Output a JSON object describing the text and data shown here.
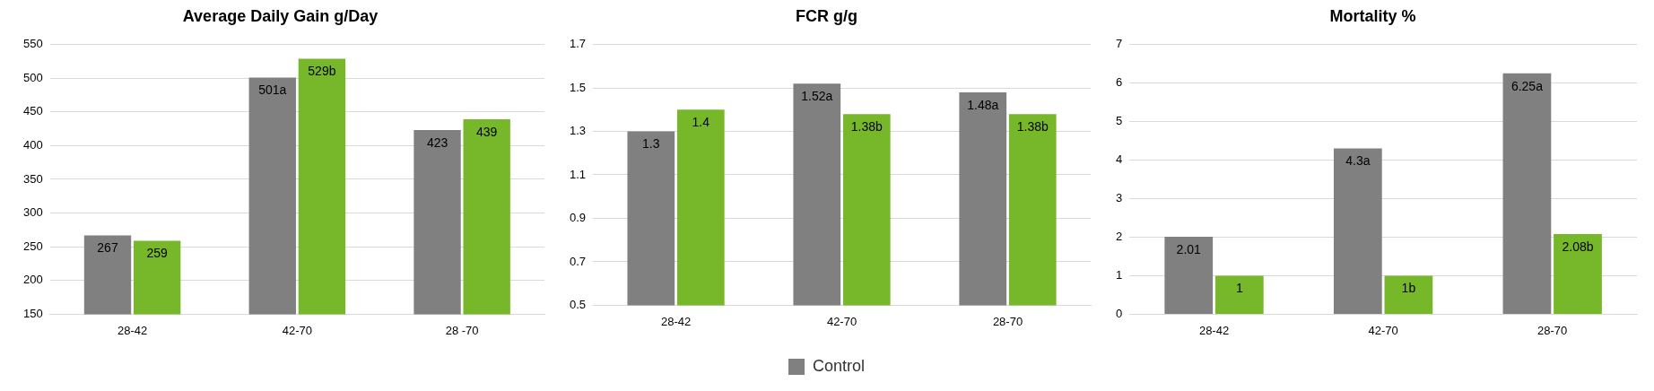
{
  "chart_data": [
    {
      "type": "bar",
      "title": "Average Daily Gain g/Day",
      "categories": [
        "28-42",
        "42-70",
        "28 -70"
      ],
      "series": [
        {
          "color": "#808080",
          "values": [
            267,
            501,
            423
          ],
          "value_labels": [
            "267",
            "501a",
            "423"
          ]
        },
        {
          "color": "#76b82a",
          "values": [
            259,
            529,
            439
          ],
          "value_labels": [
            "259",
            "529b",
            "439"
          ]
        }
      ],
      "ylim": [
        150,
        550
      ],
      "yticks": [
        150,
        200,
        250,
        300,
        350,
        400,
        450,
        500,
        550
      ],
      "grid": "y",
      "legend": false
    },
    {
      "type": "bar",
      "title": "FCR g/g",
      "categories": [
        "28-42",
        "42-70",
        "28-70"
      ],
      "series": [
        {
          "name": "Control",
          "color": "#808080",
          "values": [
            1.3,
            1.52,
            1.48
          ],
          "value_labels": [
            "1.3",
            "1.52a",
            "1.48a"
          ]
        },
        {
          "color": "#76b82a",
          "values": [
            1.4,
            1.38,
            1.38
          ],
          "value_labels": [
            "1.4",
            "1.38b",
            "1.38b"
          ]
        }
      ],
      "ylim": [
        0.5,
        1.7
      ],
      "yticks": [
        0.5,
        0.7,
        0.9,
        1.1,
        1.3,
        1.5,
        1.7
      ],
      "grid": "y",
      "legend": "bottom"
    },
    {
      "type": "bar",
      "title": "Mortality %",
      "categories": [
        "28-42",
        "42-70",
        "28-70"
      ],
      "series": [
        {
          "color": "#808080",
          "values": [
            2.01,
            4.3,
            6.25
          ],
          "value_labels": [
            "2.01",
            "4.3a",
            "6.25a"
          ]
        },
        {
          "color": "#76b82a",
          "values": [
            1,
            1,
            2.08
          ],
          "value_labels": [
            "1",
            "1b",
            "2.08b"
          ]
        }
      ],
      "ylim": [
        0,
        7
      ],
      "yticks": [
        0,
        1,
        2,
        3,
        4,
        5,
        6,
        7
      ],
      "grid": "y",
      "legend": false
    }
  ]
}
